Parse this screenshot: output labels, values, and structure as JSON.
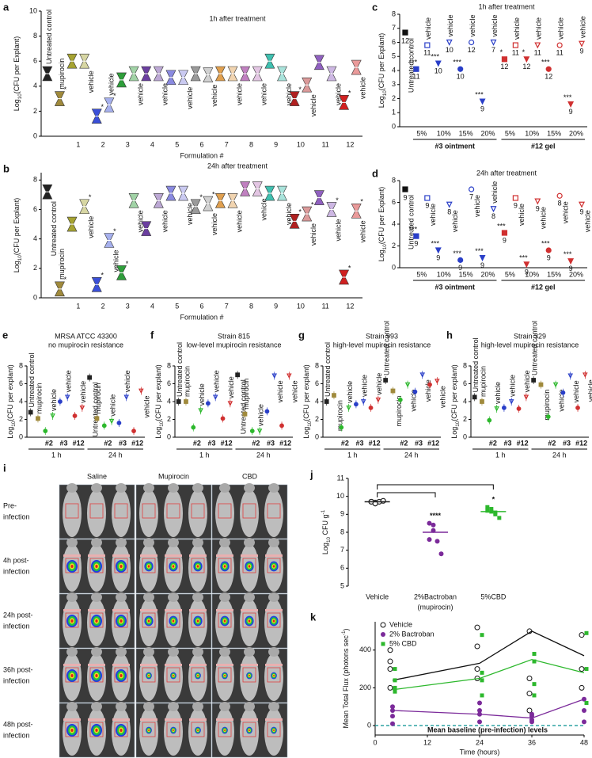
{
  "chart_data": [
    {
      "type": "violin",
      "label": "a",
      "title": "1h after treatment",
      "ylabel": {
        "text": "Log",
        "sub": "10",
        "rest": "(CFU per Explant)"
      },
      "xlabel": "Formulation #",
      "ylim": [
        0,
        10
      ],
      "yticks": [
        0,
        2,
        4,
        6,
        8,
        10
      ],
      "controls": [
        "Untreated control",
        "mupirocin"
      ],
      "control_values": [
        5.0,
        3.0
      ],
      "control_colors": [
        "#222222",
        "#a08a3c"
      ],
      "control_stars": [
        null,
        "*"
      ],
      "categories": [
        1,
        2,
        3,
        4,
        5,
        6,
        7,
        8,
        9,
        10,
        11,
        12
      ],
      "vehicle_label": "vehicle",
      "colors": [
        "#a6a332",
        "#3a4fd8",
        "#2e9e3a",
        "#6b3fa0",
        "#8a8ae0",
        "#9a9a9a",
        "#e0a050",
        "#c080c0",
        "#40c0b0",
        "#b02020",
        "#9060c0",
        "#d02020"
      ],
      "values": [
        6.0,
        1.6,
        4.5,
        5.0,
        4.7,
        5.0,
        5.0,
        5.0,
        6.0,
        3.0,
        5.9,
        2.7
      ],
      "stars": [
        null,
        "*",
        null,
        null,
        null,
        null,
        null,
        null,
        null,
        "*",
        null,
        "*"
      ],
      "vehicle_values": [
        6.0,
        2.5,
        5.0,
        5.0,
        4.7,
        4.9,
        5.0,
        5.0,
        5.0,
        4.1,
        5.0,
        5.5
      ],
      "vehicle_stars": [
        null,
        "*",
        null,
        null,
        null,
        null,
        null,
        null,
        null,
        null,
        null,
        null
      ]
    },
    {
      "type": "violin",
      "label": "b",
      "title": "24h after treatment",
      "ylabel": {
        "text": "Log",
        "sub": "10",
        "rest": "(CFU per Explant)"
      },
      "xlabel": "Formulation #",
      "ylim": [
        0,
        8.5
      ],
      "yticks": [
        0,
        2,
        4,
        6,
        8
      ],
      "controls": [
        "Untreated control",
        "mupirocin"
      ],
      "control_values": [
        7.2,
        0.6
      ],
      "control_colors": [
        "#222222",
        "#a08a3c"
      ],
      "control_stars": [
        null,
        "*"
      ],
      "categories": [
        1,
        2,
        3,
        4,
        5,
        6,
        7,
        8,
        9,
        10,
        11,
        12
      ],
      "vehicle_label": "vehicle",
      "colors": [
        "#a6a332",
        "#3a4fd8",
        "#2e9e3a",
        "#6b3fa0",
        "#8a8ae0",
        "#9a9a9a",
        "#e0a050",
        "#c080c0",
        "#40c0b0",
        "#b02020",
        "#9060c0",
        "#d02020"
      ],
      "values": [
        5.0,
        0.9,
        1.7,
        4.7,
        7.1,
        6.2,
        6.6,
        7.4,
        7.1,
        5.2,
        6.8,
        1.4
      ],
      "stars": [
        null,
        "*",
        "*",
        null,
        null,
        "*",
        null,
        null,
        null,
        "*",
        null,
        "*"
      ],
      "vehicle_values": [
        6.2,
        3.9,
        6.6,
        6.6,
        7.1,
        6.4,
        6.6,
        7.4,
        7.1,
        5.7,
        6.0,
        5.9
      ],
      "vehicle_stars": [
        "*",
        "*",
        null,
        null,
        null,
        "*",
        null,
        null,
        null,
        "*",
        "*",
        "*"
      ]
    },
    {
      "type": "dot_errorbar",
      "label": "c",
      "title": "1h after treatment",
      "ylabel": {
        "text": "Log",
        "sub": "10",
        "rest": "(CFU per Explant)"
      },
      "ylim": [
        0,
        8
      ],
      "yticks": [
        0,
        1,
        2,
        3,
        4,
        5,
        6,
        7,
        8
      ],
      "control": "Untreated control",
      "control_value": 6.7,
      "control_n": 12,
      "concentrations": [
        "5%",
        "10%",
        "15%",
        "20%"
      ],
      "vehicle_label": "vehicle",
      "series": [
        {
          "name": "#3 ointment",
          "color": "#2a3fc8",
          "values": [
            4.1,
            4.5,
            4.1,
            1.8
          ],
          "n": [
            11,
            10,
            10,
            9
          ],
          "stars": [
            "***",
            "***",
            "***",
            "***"
          ],
          "vehicle_values": [
            5.8,
            6.0,
            6.0,
            6.0
          ],
          "vehicle_n": [
            11,
            10,
            12,
            7
          ]
        },
        {
          "name": "#12 gel",
          "color": "#d03030",
          "values": [
            4.8,
            4.8,
            4.1,
            1.6
          ],
          "n": [
            12,
            12,
            12,
            9
          ],
          "stars": [
            "*",
            "*",
            "***",
            "***"
          ],
          "vehicle_values": [
            5.8,
            5.8,
            5.8,
            5.9
          ],
          "vehicle_n": [
            11,
            11,
            11,
            9
          ]
        }
      ]
    },
    {
      "type": "dot_errorbar",
      "label": "d",
      "title": "24h after treatment",
      "ylabel": {
        "text": "Log",
        "sub": "10",
        "rest": "(CFU per Explant)"
      },
      "ylim": [
        0,
        8
      ],
      "yticks": [
        0,
        2,
        4,
        6,
        8
      ],
      "control": "Untreated control",
      "control_value": 7.2,
      "control_n": 9,
      "concentrations": [
        "5%",
        "10%",
        "15%",
        "20%"
      ],
      "vehicle_label": "vehicle",
      "series": [
        {
          "name": "#3 ointment",
          "color": "#2a3fc8",
          "values": [
            2.9,
            1.6,
            0.7,
            0.9
          ],
          "n": [
            9,
            9,
            9,
            9
          ],
          "stars": [
            "***",
            "***",
            "***",
            "***"
          ],
          "vehicle_values": [
            6.4,
            5.8,
            7.2,
            5.4
          ],
          "vehicle_n": [
            9,
            8,
            7,
            8
          ]
        },
        {
          "name": "#12 gel",
          "color": "#d03030",
          "values": [
            3.2,
            0.3,
            1.6,
            0.6
          ],
          "n": [
            9,
            9,
            9,
            9
          ],
          "stars": [
            "***",
            "***",
            "***",
            "***"
          ],
          "vehicle_values": [
            6.4,
            6.1,
            6.6,
            5.8
          ],
          "vehicle_n": [
            9,
            9,
            8,
            9
          ]
        }
      ]
    },
    {
      "type": "dot_group",
      "label": "e",
      "title": [
        "MRSA ATCC 43300",
        "no mupirocin resistance"
      ],
      "ylabel": {
        "text": "Log",
        "sub": "10",
        "rest": "(CFU per explant)"
      },
      "ylim": [
        0,
        8
      ],
      "yticks": [
        0,
        2,
        4,
        6,
        8
      ],
      "categories": [
        "Untreated control",
        "mupirocin",
        null,
        "vehicle",
        null,
        "vehicle",
        null,
        "vehicle"
      ],
      "groups": [
        "#2",
        "#3",
        "#12"
      ],
      "colors": [
        "#222222",
        "#a08a3c",
        "#2db82d",
        "#2db82d",
        "#2a3fc8",
        "#2a3fc8",
        "#d03030",
        "#d03030"
      ],
      "series": [
        {
          "name": "1 h",
          "values": [
            2.8,
            2.1,
            0.7,
            2.4,
            4.0,
            4.5,
            2.4,
            3.3
          ]
        },
        {
          "name": "24 h",
          "values": [
            6.7,
            2.1,
            1.3,
            1.8,
            1.6,
            4.5,
            0.7,
            5.2
          ]
        }
      ]
    },
    {
      "type": "dot_group",
      "label": "f",
      "title": [
        "Strain 815",
        "low-level mupirocin resistance"
      ],
      "ylabel": {
        "text": "Log",
        "sub": "10",
        "rest": "(CFU per explant)"
      },
      "ylim": [
        0,
        8
      ],
      "yticks": [
        0,
        2,
        4,
        6,
        8
      ],
      "categories": [
        "Untreated control",
        "mupirocin",
        null,
        "vehicle",
        null,
        "vehicle",
        null,
        "vehicle"
      ],
      "groups": [
        "#2",
        "#3",
        "#12"
      ],
      "colors": [
        "#222222",
        "#a08a3c",
        "#2db82d",
        "#2db82d",
        "#2a3fc8",
        "#2a3fc8",
        "#d03030",
        "#d03030"
      ],
      "series": [
        {
          "name": "1 h",
          "values": [
            4.0,
            4.0,
            1.1,
            3.0,
            3.8,
            4.5,
            2.1,
            3.8
          ]
        },
        {
          "name": "24 h",
          "values": [
            7.0,
            2.6,
            0.7,
            0.7,
            2.9,
            6.9,
            1.3,
            6.9
          ]
        }
      ]
    },
    {
      "type": "dot_group",
      "label": "g",
      "title": [
        "Strain 993",
        "high-level mupirocin resistance"
      ],
      "ylabel": {
        "text": "Log",
        "sub": "10",
        "rest": "(CFU per explant)"
      },
      "ylim": [
        0,
        8
      ],
      "yticks": [
        0,
        2,
        4,
        6,
        8
      ],
      "categories": [
        "Untreated control",
        "mupirocin",
        null,
        "vehicle",
        null,
        "vehicle",
        null,
        "vehicle"
      ],
      "groups": [
        "#2",
        "#3",
        "#12"
      ],
      "colors": [
        "#222222",
        "#a08a3c",
        "#2db82d",
        "#2db82d",
        "#2a3fc8",
        "#2a3fc8",
        "#d03030",
        "#d03030"
      ],
      "series": [
        {
          "name": "1 h",
          "values": [
            4.0,
            4.7,
            1.1,
            3.3,
            3.7,
            4.0,
            3.3,
            4.2
          ]
        },
        {
          "name": "24 h",
          "values": [
            6.4,
            5.2,
            4.2,
            5.9,
            5.1,
            7.0,
            5.9,
            6.3
          ]
        }
      ]
    },
    {
      "type": "dot_group",
      "label": "h",
      "title": [
        "Strain 329",
        "high-level mupirocin resistance"
      ],
      "ylabel": {
        "text": "Log",
        "sub": "10",
        "rest": "(CFU per explant)"
      },
      "ylim": [
        0,
        8
      ],
      "yticks": [
        0,
        2,
        4,
        6,
        8
      ],
      "categories": [
        "Untreated control",
        "mupirocin",
        null,
        "vehicle",
        null,
        "vehicle",
        null,
        "vehicle"
      ],
      "groups": [
        "#2",
        "#3",
        "#12"
      ],
      "colors": [
        "#222222",
        "#a08a3c",
        "#2db82d",
        "#2db82d",
        "#2a3fc8",
        "#2a3fc8",
        "#d03030",
        "#d03030"
      ],
      "series": [
        {
          "name": "1 h",
          "values": [
            4.5,
            4.0,
            1.9,
            3.2,
            3.3,
            4.0,
            3.2,
            4.5
          ]
        },
        {
          "name": "24 h",
          "values": [
            6.4,
            5.9,
            2.3,
            5.9,
            5.0,
            6.9,
            3.3,
            7.0
          ]
        }
      ]
    },
    {
      "type": "dot_strip",
      "label": "j",
      "ylabel": {
        "text": "Log",
        "sub": "10",
        "rest": " CFU g",
        "sup": "-1"
      },
      "ylim": [
        5,
        11
      ],
      "yticks": [
        5,
        6,
        7,
        8,
        9,
        10,
        11
      ],
      "categories": [
        "Vehicle",
        "2%Bactroban",
        "5%CBD"
      ],
      "category_notes": [
        null,
        "(mupirocin)",
        null
      ],
      "colors": [
        "#222222",
        "#7b2a9a",
        "#2db82d"
      ],
      "means": [
        9.7,
        8.0,
        9.15
      ],
      "stars": [
        null,
        "****",
        "*"
      ],
      "points": [
        [
          9.7,
          9.65,
          9.7,
          9.75,
          9.7,
          9.6
        ],
        [
          8.5,
          8.4,
          7.5,
          6.8,
          7.6,
          8.1
        ],
        [
          9.4,
          9.3,
          9.0,
          8.8,
          9.2,
          9.15,
          9.1
        ]
      ]
    },
    {
      "type": "line",
      "label": "k",
      "ylabel": {
        "text": "Mean Total Flux (photons sec",
        "sup": "-1",
        "end": ")"
      },
      "xlabel": "Time (hours)",
      "xlim": [
        0,
        48
      ],
      "xticks": [
        0,
        12,
        24,
        36,
        48
      ],
      "ylim": [
        -50,
        550
      ],
      "yticks": [
        0,
        200,
        400
      ],
      "baseline": 0,
      "baseline_label": "Mean baseline (pre-infection) levels",
      "baseline_color": "#1a9a9a",
      "x": [
        4,
        24,
        36,
        48
      ],
      "points_x": [
        4,
        4,
        4,
        4,
        24,
        24,
        24,
        24,
        36,
        36,
        36,
        36,
        48,
        48,
        48
      ],
      "series": [
        {
          "name": "Vehicle",
          "color": "#111111",
          "values": [
            240,
            330,
            500,
            370
          ],
          "points": [
            200,
            300,
            340,
            400,
            250,
            300,
            420,
            520,
            80,
            170,
            250,
            500,
            200,
            300,
            480
          ]
        },
        {
          "name": "2% Bactroban",
          "color": "#7b2a9a",
          "values": [
            80,
            60,
            40,
            140
          ],
          "points": [
            10,
            50,
            80,
            100,
            20,
            60,
            80,
            120,
            20,
            30,
            50,
            60,
            20,
            80,
            140
          ]
        },
        {
          "name": "5% CBD",
          "color": "#2db82d",
          "values": [
            190,
            250,
            350,
            280
          ],
          "points": [
            180,
            200,
            240,
            300,
            160,
            240,
            280,
            480,
            160,
            220,
            340,
            380,
            120,
            300,
            490
          ]
        }
      ]
    }
  ],
  "image_panel": {
    "label": "i",
    "columns": [
      "Saline",
      "Mupirocin",
      "CBD"
    ],
    "rows": [
      [
        "Pre-",
        "infection"
      ],
      [
        "4h post-",
        "infection"
      ],
      [
        "24h post-",
        "infection"
      ],
      [
        "36h post-",
        "infection"
      ],
      [
        "48h post-",
        "infection"
      ]
    ]
  }
}
